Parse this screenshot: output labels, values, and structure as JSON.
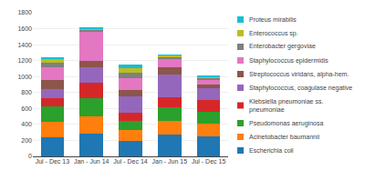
{
  "chart_data": {
    "type": "bar",
    "stacked": true,
    "categories": [
      "Jul - Dec 13",
      "Jan - Jun 14",
      "Jul - Dec 14",
      "Jan - Jun 15",
      "Jul - Dec 15"
    ],
    "series": [
      {
        "name": "Escherichia coli",
        "values": [
          235,
          280,
          195,
          275,
          255
        ]
      },
      {
        "name": "Acinetobacter baumannii",
        "values": [
          200,
          225,
          130,
          170,
          155
        ]
      },
      {
        "name": "Pseudomonas aeruginosa",
        "values": [
          195,
          220,
          125,
          165,
          145
        ]
      },
      {
        "name": "Klebsiella pneumoniae ss.\npneumoniae",
        "values": [
          100,
          195,
          100,
          125,
          150
        ]
      },
      {
        "name": "Staphylococcus, coagulase negative",
        "values": [
          115,
          195,
          200,
          295,
          145
        ]
      },
      {
        "name": "Streptococcus viridans, alpha-hem.",
        "values": [
          115,
          80,
          80,
          85,
          55
        ]
      },
      {
        "name": "Staphylococcus epidermidis",
        "values": [
          155,
          370,
          145,
          100,
          50
        ]
      },
      {
        "name": "Enterobacter gergoviae",
        "values": [
          55,
          25,
          75,
          25,
          25
        ]
      },
      {
        "name": "Enterococcus sp.",
        "values": [
          50,
          15,
          50,
          25,
          15
        ]
      },
      {
        "name": "Proteus mirabilis",
        "values": [
          15,
          10,
          45,
          10,
          15
        ]
      }
    ],
    "ylim": [
      0,
      1800
    ],
    "yticks": [
      0,
      200,
      400,
      600,
      800,
      1000,
      1200,
      1400,
      1600,
      1800
    ],
    "grid": true,
    "legend": "right"
  }
}
